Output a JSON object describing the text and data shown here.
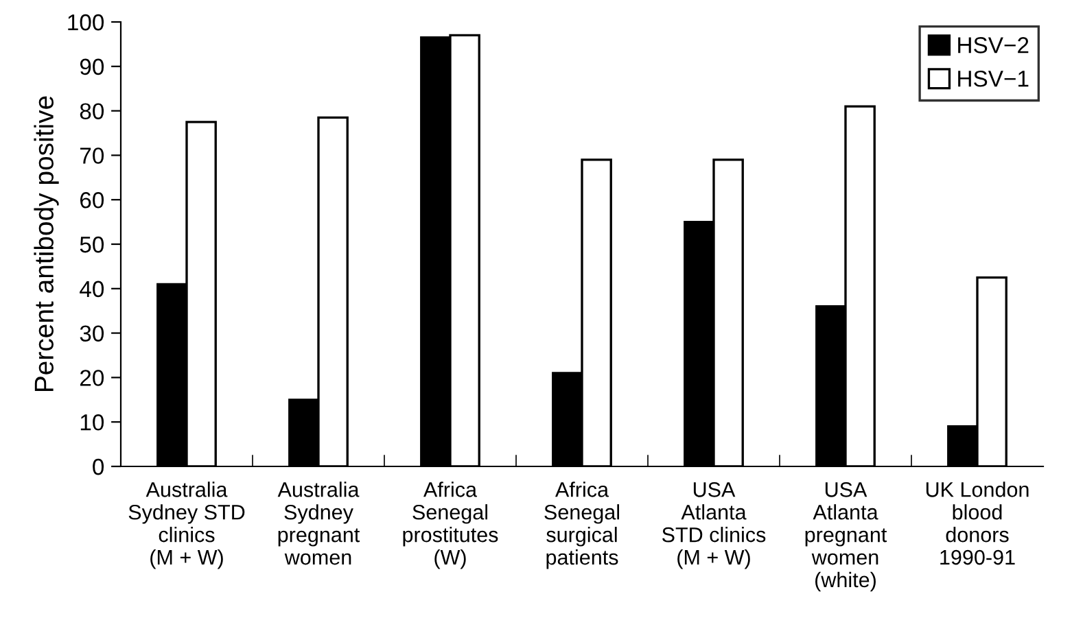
{
  "chart_data": {
    "type": "bar",
    "ylabel": "Percent antibody positive",
    "categories": [
      "Australia\nSydney STD\nclinics\n(M + W)",
      "Australia\nSydney\npregnant\nwomen",
      "Africa\nSenegal\nprostitutes\n(W)",
      "Africa\nSenegal\nsurgical\npatients",
      "USA\nAtlanta\nSTD clinics\n(M + W)",
      "USA\nAtlanta\npregnant\nwomen\n(white)",
      "UK London\nblood\ndonors\n1990-91"
    ],
    "series": [
      {
        "name": "HSV−2",
        "color": "#000000",
        "values": [
          41,
          15,
          96.5,
          21,
          55,
          36,
          9
        ]
      },
      {
        "name": "HSV−1",
        "color": "#ffffff",
        "values": [
          77.5,
          78.5,
          97,
          69,
          69,
          81,
          42.5
        ]
      }
    ],
    "ylim": [
      0,
      100
    ],
    "yticks": [
      0,
      10,
      20,
      30,
      40,
      50,
      60,
      70,
      80,
      90,
      100
    ],
    "grid": false,
    "legend": "top right"
  }
}
